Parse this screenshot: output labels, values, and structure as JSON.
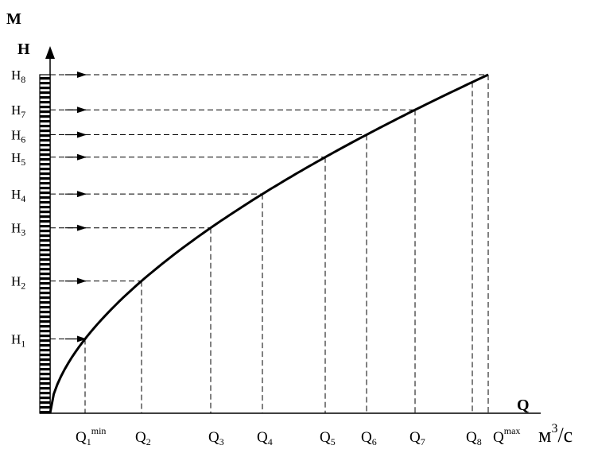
{
  "y_unit": "М",
  "y_axis_label": "H",
  "x_axis_label": "Q",
  "x_unit": "м",
  "x_unit_power": "3",
  "x_unit_tail": "/с",
  "levels": [
    {
      "base": "H",
      "sub": "1"
    },
    {
      "base": "H",
      "sub": "2"
    },
    {
      "base": "H",
      "sub": "3"
    },
    {
      "base": "H",
      "sub": "4"
    },
    {
      "base": "H",
      "sub": "5"
    },
    {
      "base": "H",
      "sub": "6"
    },
    {
      "base": "H",
      "sub": "7"
    },
    {
      "base": "H",
      "sub": "8"
    }
  ],
  "flows": [
    {
      "base": "Q",
      "sub": "1",
      "sup": "min"
    },
    {
      "base": "Q",
      "sub": "2",
      "sup": ""
    },
    {
      "base": "Q",
      "sub": "3",
      "sup": ""
    },
    {
      "base": "Q",
      "sub": "4",
      "sup": ""
    },
    {
      "base": "Q",
      "sub": "5",
      "sup": ""
    },
    {
      "base": "Q",
      "sub": "6",
      "sup": ""
    },
    {
      "base": "Q",
      "sub": "7",
      "sup": ""
    },
    {
      "base": "Q",
      "sub": "8",
      "sup": ""
    },
    {
      "base": "Q",
      "sub": "",
      "sup": "max"
    }
  ]
}
